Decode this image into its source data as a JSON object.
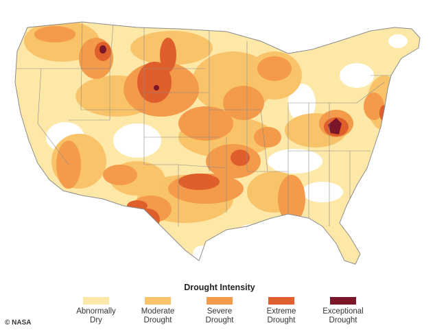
{
  "legend": {
    "title": "Drought Intensity",
    "items": [
      {
        "line1": "Abnormally",
        "line2": "Dry",
        "color": "#fde8a8"
      },
      {
        "line1": "Moderate",
        "line2": "Drought",
        "color": "#f9c36a"
      },
      {
        "line1": "Severe",
        "line2": "Drought",
        "color": "#f39b4a"
      },
      {
        "line1": "Extreme",
        "line2": "Drought",
        "color": "#df5f2c"
      },
      {
        "line1": "Exceptional",
        "line2": "Drought",
        "color": "#7b1528"
      }
    ]
  },
  "credit": "© NASA",
  "colors": {
    "background": "#ffffff",
    "state_borders": "#8a8a8a",
    "land_no_drought": "#ffffff"
  }
}
